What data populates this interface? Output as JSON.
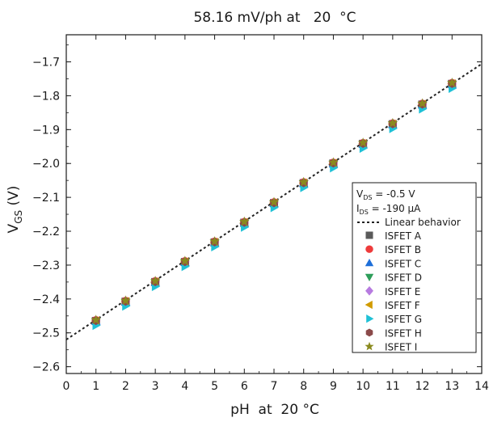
{
  "chart_data": {
    "type": "scatter",
    "title": "58.16 mV/ph at   20  °C",
    "xlabel": "pH  at  20 °C",
    "ylabel": {
      "main": "V",
      "sub": "GS",
      "unit": " (V)"
    },
    "xlim": [
      0,
      14
    ],
    "ylim": [
      -2.62,
      -1.62
    ],
    "xticks": [
      "0",
      "1",
      "2",
      "3",
      "4",
      "5",
      "6",
      "7",
      "8",
      "9",
      "10",
      "11",
      "12",
      "13",
      "14"
    ],
    "yticks": [
      "-1.7",
      "-1.8",
      "-1.9",
      "-2.0",
      "-2.1",
      "-2.2",
      "-2.3",
      "-2.4",
      "-2.5",
      "-2.6"
    ],
    "grid": false,
    "legend_position": "right",
    "legend_header": [
      {
        "main": "V",
        "sub": "DS",
        "rest": " = -0.5 V"
      },
      {
        "main": "I",
        "sub": "DS",
        "rest": " = -190 μA"
      }
    ],
    "linear_fit": {
      "name": "Linear behavior",
      "x": [
        0,
        14
      ],
      "y": [
        -2.52,
        -1.706
      ],
      "color": "#222222"
    },
    "series": [
      {
        "name": "ISFET A",
        "marker": "square",
        "color": "#5a5a5a",
        "x": [
          1,
          2,
          3,
          4,
          5,
          6,
          7,
          8,
          9,
          10,
          11,
          12,
          13
        ],
        "y": [
          -2.465,
          -2.408,
          -2.35,
          -2.291,
          -2.233,
          -2.175,
          -2.117,
          -2.058,
          -2.0,
          -1.942,
          -1.884,
          -1.826,
          -1.765
        ]
      },
      {
        "name": "ISFET B",
        "marker": "circle",
        "color": "#ee3b3b",
        "x": [
          1,
          2,
          3,
          4,
          5,
          6,
          7,
          8,
          9,
          10,
          11,
          12,
          13
        ],
        "y": [
          -2.463,
          -2.406,
          -2.348,
          -2.289,
          -2.231,
          -2.173,
          -2.115,
          -2.056,
          -1.998,
          -1.94,
          -1.882,
          -1.824,
          -1.763
        ]
      },
      {
        "name": "ISFET C",
        "marker": "triangle-up",
        "color": "#1e6fd9",
        "x": [
          1,
          2,
          3,
          4,
          5,
          6,
          7,
          8,
          9,
          10,
          11,
          12,
          13
        ],
        "y": [
          -2.466,
          -2.409,
          -2.351,
          -2.292,
          -2.234,
          -2.176,
          -2.118,
          -2.059,
          -2.001,
          -1.943,
          -1.885,
          -1.827,
          -1.766
        ]
      },
      {
        "name": "ISFET D",
        "marker": "triangle-down",
        "color": "#2e9e5a",
        "x": [
          1,
          2,
          3,
          4,
          5,
          6,
          7,
          8,
          9,
          10,
          11,
          12,
          13
        ],
        "y": [
          -2.467,
          -2.41,
          -2.352,
          -2.293,
          -2.235,
          -2.177,
          -2.119,
          -2.06,
          -2.002,
          -1.944,
          -1.886,
          -1.828,
          -1.767
        ]
      },
      {
        "name": "ISFET E",
        "marker": "diamond",
        "color": "#b77be0",
        "x": [
          1,
          2,
          3,
          4,
          5,
          6,
          7,
          8,
          9,
          10,
          11,
          12,
          13
        ],
        "y": [
          -2.464,
          -2.407,
          -2.349,
          -2.29,
          -2.232,
          -2.174,
          -2.116,
          -2.057,
          -1.999,
          -1.941,
          -1.883,
          -1.825,
          -1.764
        ]
      },
      {
        "name": "ISFET F",
        "marker": "triangle-left",
        "color": "#d19b00",
        "x": [
          1,
          2,
          3,
          4,
          5,
          6,
          7,
          8,
          9,
          10,
          11,
          12,
          13
        ],
        "y": [
          -2.465,
          -2.408,
          -2.35,
          -2.291,
          -2.233,
          -2.175,
          -2.117,
          -2.058,
          -2.0,
          -1.942,
          -1.884,
          -1.826,
          -1.765
        ]
      },
      {
        "name": "ISFET G",
        "marker": "triangle-right",
        "color": "#1fc1d6",
        "x": [
          1,
          2,
          3,
          4,
          5,
          6,
          7,
          8,
          9,
          10,
          11,
          12,
          13
        ],
        "y": [
          -2.478,
          -2.421,
          -2.363,
          -2.304,
          -2.246,
          -2.188,
          -2.13,
          -2.071,
          -2.013,
          -1.955,
          -1.897,
          -1.839,
          -1.778
        ]
      },
      {
        "name": "ISFET H",
        "marker": "hexagon",
        "color": "#8b4a4a",
        "x": [
          1,
          2,
          3,
          4,
          5,
          6,
          7,
          8,
          9,
          10,
          11,
          12,
          13
        ],
        "y": [
          -2.464,
          -2.407,
          -2.349,
          -2.29,
          -2.232,
          -2.174,
          -2.116,
          -2.057,
          -1.999,
          -1.941,
          -1.883,
          -1.825,
          -1.764
        ]
      },
      {
        "name": "ISFET I",
        "marker": "star",
        "color": "#8a8a1e",
        "x": [
          1,
          2,
          3,
          4,
          5,
          6,
          7,
          8,
          9,
          10,
          11,
          12,
          13
        ],
        "y": [
          -2.462,
          -2.405,
          -2.347,
          -2.288,
          -2.23,
          -2.172,
          -2.114,
          -2.055,
          -1.997,
          -1.939,
          -1.881,
          -1.823,
          -1.762
        ]
      }
    ]
  }
}
